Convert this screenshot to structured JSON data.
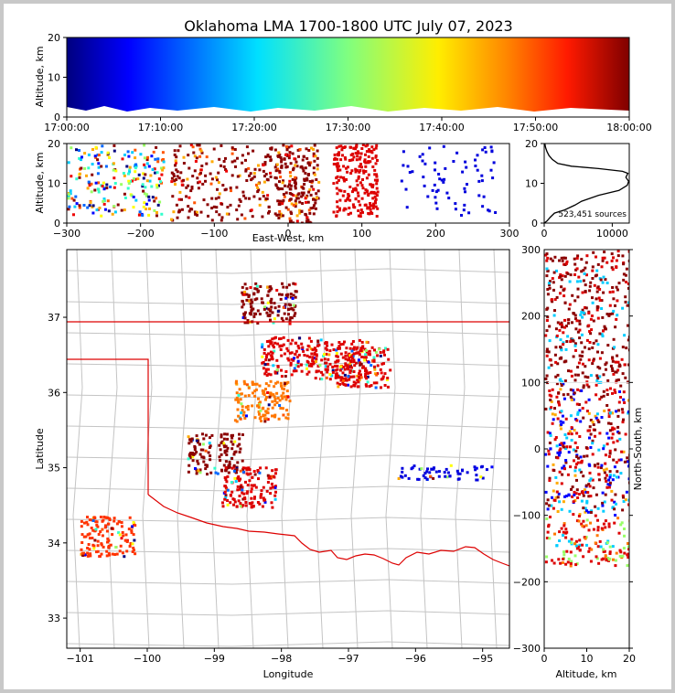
{
  "title": "Oklahoma LMA 1700-1800 UTC July 07, 2023",
  "colors": {
    "state_border": "#dd0000",
    "county_lines": "#c4c4c4",
    "axis": "#000000"
  },
  "chart_data": [
    {
      "id": "time_height",
      "type": "scatter",
      "ylabel": "Altitude, km",
      "xlim": [
        "17:00:00",
        "18:00:00"
      ],
      "ylim": [
        0,
        20
      ],
      "x_ticks": [
        "17:00:00",
        "17:10:00",
        "17:20:00",
        "17:30:00",
        "17:40:00",
        "17:50:00",
        "18:00:00"
      ],
      "y_ticks": [
        "0",
        "10",
        "20"
      ],
      "colormap": "jet (by time)"
    },
    {
      "id": "ew_altitude",
      "type": "scatter",
      "xlabel": "East-West, km",
      "ylabel": "Altitude, km",
      "xlim": [
        -300,
        300
      ],
      "ylim": [
        0,
        20
      ],
      "x_ticks": [
        "−300",
        "−200",
        "−100",
        "0",
        "100",
        "200",
        "300"
      ],
      "y_ticks": [
        "0",
        "10",
        "20"
      ],
      "clusters": [
        {
          "x": [
            -300,
            -170
          ],
          "alt": [
            2,
            20
          ],
          "color": "mixed"
        },
        {
          "x": [
            -160,
            -20
          ],
          "alt": [
            1,
            20
          ],
          "color": "#8b0000"
        },
        {
          "x": [
            -20,
            40
          ],
          "alt": [
            0,
            20
          ],
          "color": "#8b0000"
        },
        {
          "x": [
            60,
            120
          ],
          "alt": [
            2,
            20
          ],
          "color": "#dd0000"
        },
        {
          "x": [
            150,
            280
          ],
          "alt": [
            2,
            20
          ],
          "color": "#0000dd"
        }
      ]
    },
    {
      "id": "altitude_histogram",
      "type": "line",
      "xlim": [
        0,
        12500
      ],
      "ylim": [
        0,
        20
      ],
      "x_ticks": [
        "0",
        "10000"
      ],
      "y_ticks": [
        "0",
        "10",
        "20"
      ],
      "annotation": "523,451 sources",
      "points": [
        [
          0,
          0
        ],
        [
          400,
          0.5
        ],
        [
          900,
          1.5
        ],
        [
          1500,
          2.5
        ],
        [
          3000,
          3.3
        ],
        [
          4500,
          4.5
        ],
        [
          5500,
          5.5
        ],
        [
          8000,
          7.0
        ],
        [
          11000,
          8.2
        ],
        [
          12200,
          9.5
        ],
        [
          12400,
          10.5
        ],
        [
          12000,
          11.5
        ],
        [
          12300,
          12.5
        ],
        [
          11500,
          13.0
        ],
        [
          8000,
          13.7
        ],
        [
          4000,
          14.3
        ],
        [
          2000,
          15.0
        ],
        [
          1200,
          16.0
        ],
        [
          700,
          17.0
        ],
        [
          400,
          18.0
        ],
        [
          200,
          19.0
        ],
        [
          100,
          20.0
        ]
      ]
    },
    {
      "id": "plan_view",
      "type": "scatter",
      "xlabel": "Longitude",
      "ylabel": "Latitude",
      "xlim": [
        -101.2,
        -94.6
      ],
      "ylim": [
        32.6,
        37.9
      ],
      "x_ticks": [
        "−101",
        "−100",
        "−99",
        "−98",
        "−97",
        "−96",
        "−95"
      ],
      "y_ticks": [
        "33",
        "34",
        "35",
        "36",
        "37"
      ],
      "clusters": [
        {
          "lon": -98.2,
          "lat": 37.2,
          "color": "#8b0000"
        },
        {
          "lon": -97.9,
          "lat": 36.5,
          "color": "#dd0000"
        },
        {
          "lon": -97.1,
          "lat": 36.45,
          "color": "#dd0000"
        },
        {
          "lon": -96.8,
          "lat": 36.35,
          "color": "#dd0000"
        },
        {
          "lon": -98.3,
          "lat": 35.9,
          "color": "#ff7700"
        },
        {
          "lon": -99.0,
          "lat": 35.2,
          "color": "#8b0000"
        },
        {
          "lon": -98.5,
          "lat": 34.75,
          "color": "#dd0000"
        },
        {
          "lon": -100.6,
          "lat": 34.1,
          "color": "#ff3300"
        },
        {
          "lon": -95.6,
          "lat": 34.95,
          "color": "#0000dd"
        }
      ]
    },
    {
      "id": "altitude_ns",
      "type": "scatter",
      "xlabel": "Altitude, km",
      "ylabel": "North-South, km",
      "xlim": [
        0,
        20
      ],
      "ylim": [
        -300,
        300
      ],
      "x_ticks": [
        "0",
        "10",
        "20"
      ],
      "y_ticks": [
        "−300",
        "−200",
        "−100",
        "0",
        "100",
        "200",
        "300"
      ]
    }
  ]
}
